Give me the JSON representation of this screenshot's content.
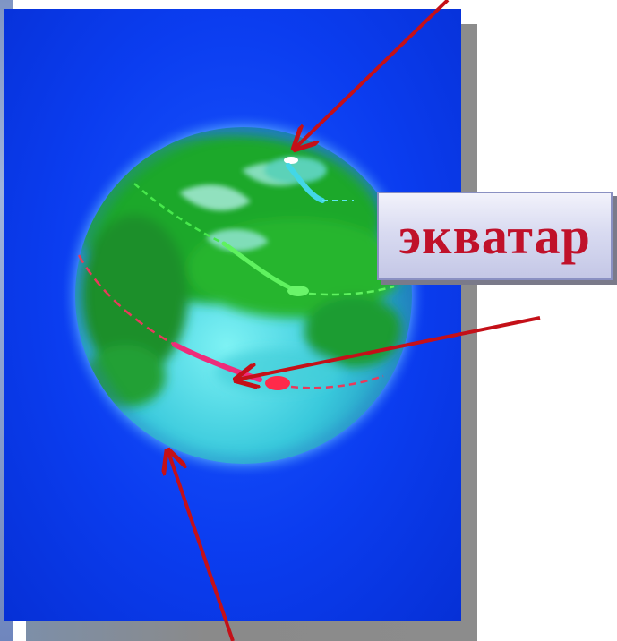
{
  "label": {
    "text": "экватар"
  },
  "colors": {
    "panel_blue": "#0b3df0",
    "globe_green": "#1fa82a",
    "globe_cyan": "#3fe0e8",
    "equator_dash": "#e83a5c",
    "arrow": "#c41018",
    "label_text": "#c0112a"
  },
  "icons": [
    "globe-illustration",
    "arrow-north-pole",
    "arrow-equator",
    "arrow-south-pole"
  ]
}
